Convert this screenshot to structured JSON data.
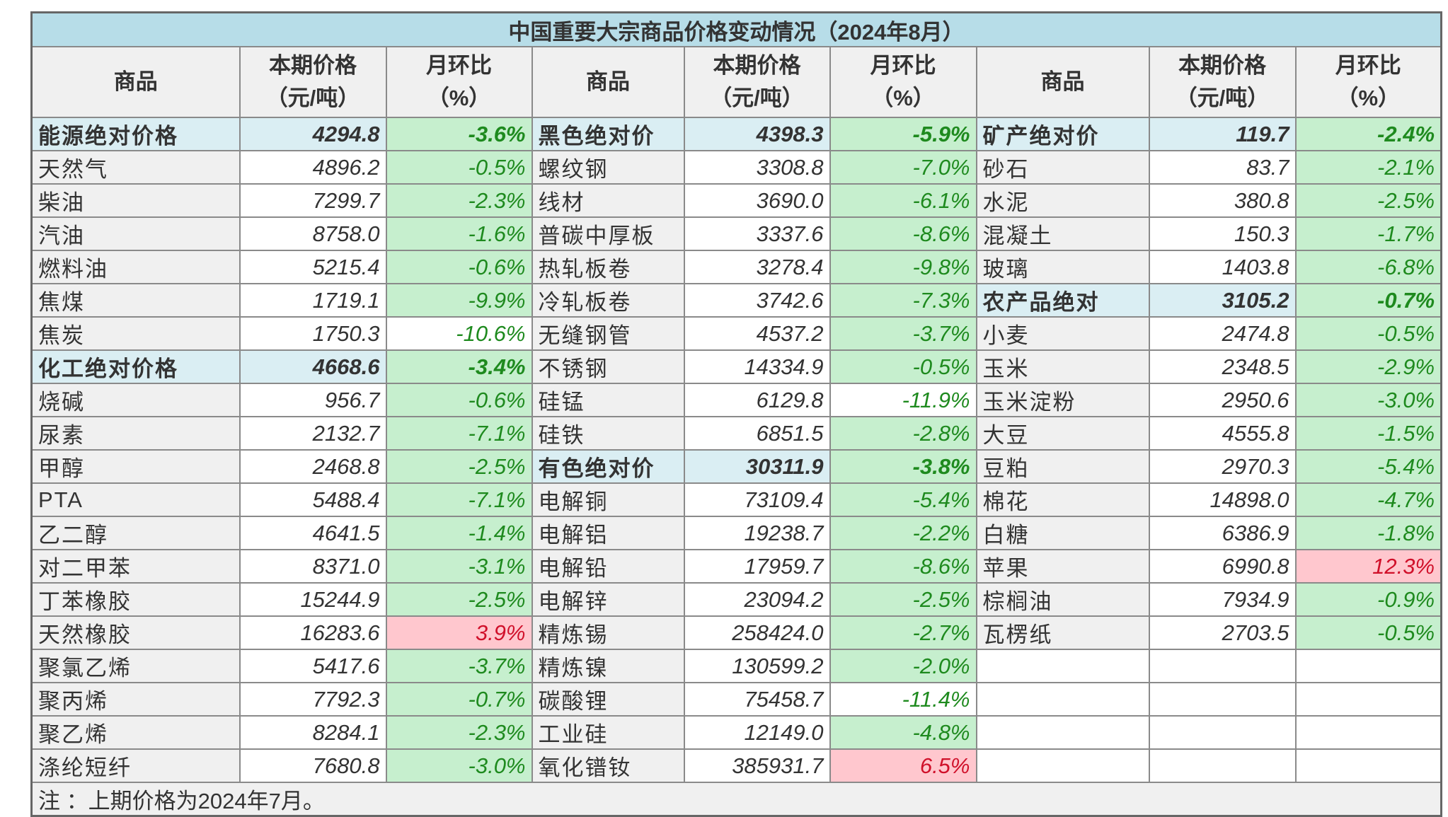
{
  "title": "中国重要大宗商品价格变动情况（2024年8月）",
  "headers": {
    "name": "商品",
    "price": [
      "本期价格",
      "（元/吨）"
    ],
    "change": [
      "月环比",
      "（%）"
    ]
  },
  "colors": {
    "header_bg": "#b7dde8",
    "category_bg": "#daeef3",
    "down_fill": "#c6efce",
    "down_text": "#1e8a1e",
    "up_fill": "#ffc7ce",
    "up_text": "#d0102a"
  },
  "groups": [
    [
      {
        "name": "能源绝对价格",
        "price": "4294.8",
        "change": "-3.6%",
        "category": true,
        "fill": "green"
      },
      {
        "name": "天然气",
        "price": "4896.2",
        "change": "-0.5%",
        "fill": "green"
      },
      {
        "name": "柴油",
        "price": "7299.7",
        "change": "-2.3%",
        "fill": "green"
      },
      {
        "name": "汽油",
        "price": "8758.0",
        "change": "-1.6%",
        "fill": "green"
      },
      {
        "name": "燃料油",
        "price": "5215.4",
        "change": "-0.6%",
        "fill": "green"
      },
      {
        "name": "焦煤",
        "price": "1719.1",
        "change": "-9.9%",
        "fill": "green"
      },
      {
        "name": "焦炭",
        "price": "1750.3",
        "change": "-10.6%",
        "fill": "none"
      },
      {
        "name": "化工绝对价格",
        "price": "4668.6",
        "change": "-3.4%",
        "category": true,
        "fill": "green"
      },
      {
        "name": "烧碱",
        "price": "956.7",
        "change": "-0.6%",
        "fill": "green"
      },
      {
        "name": "尿素",
        "price": "2132.7",
        "change": "-7.1%",
        "fill": "green"
      },
      {
        "name": "甲醇",
        "price": "2468.8",
        "change": "-2.5%",
        "fill": "green"
      },
      {
        "name": "PTA",
        "price": "5488.4",
        "change": "-7.1%",
        "fill": "green"
      },
      {
        "name": "乙二醇",
        "price": "4641.5",
        "change": "-1.4%",
        "fill": "green"
      },
      {
        "name": "对二甲苯",
        "price": "8371.0",
        "change": "-3.1%",
        "fill": "green"
      },
      {
        "name": "丁苯橡胶",
        "price": "15244.9",
        "change": "-2.5%",
        "fill": "green"
      },
      {
        "name": "天然橡胶",
        "price": "16283.6",
        "change": "3.9%",
        "fill": "red"
      },
      {
        "name": "聚氯乙烯",
        "price": "5417.6",
        "change": "-3.7%",
        "fill": "green"
      },
      {
        "name": "聚丙烯",
        "price": "7792.3",
        "change": "-0.7%",
        "fill": "green"
      },
      {
        "name": "聚乙烯",
        "price": "8284.1",
        "change": "-2.3%",
        "fill": "green"
      },
      {
        "name": "涤纶短纤",
        "price": "7680.8",
        "change": "-3.0%",
        "fill": "green"
      }
    ],
    [
      {
        "name": "黑色绝对价",
        "price": "4398.3",
        "change": "-5.9%",
        "category": true,
        "fill": "green"
      },
      {
        "name": "螺纹钢",
        "price": "3308.8",
        "change": "-7.0%",
        "fill": "green"
      },
      {
        "name": "线材",
        "price": "3690.0",
        "change": "-6.1%",
        "fill": "green"
      },
      {
        "name": "普碳中厚板",
        "price": "3337.6",
        "change": "-8.6%",
        "fill": "green"
      },
      {
        "name": "热轧板卷",
        "price": "3278.4",
        "change": "-9.8%",
        "fill": "green"
      },
      {
        "name": "冷轧板卷",
        "price": "3742.6",
        "change": "-7.3%",
        "fill": "green"
      },
      {
        "name": "无缝钢管",
        "price": "4537.2",
        "change": "-3.7%",
        "fill": "green"
      },
      {
        "name": "不锈钢",
        "price": "14334.9",
        "change": "-0.5%",
        "fill": "green"
      },
      {
        "name": "硅锰",
        "price": "6129.8",
        "change": "-11.9%",
        "fill": "none"
      },
      {
        "name": "硅铁",
        "price": "6851.5",
        "change": "-2.8%",
        "fill": "green"
      },
      {
        "name": "有色绝对价",
        "price": "30311.9",
        "change": "-3.8%",
        "category": true,
        "fill": "green"
      },
      {
        "name": "电解铜",
        "price": "73109.4",
        "change": "-5.4%",
        "fill": "green"
      },
      {
        "name": "电解铝",
        "price": "19238.7",
        "change": "-2.2%",
        "fill": "green"
      },
      {
        "name": "电解铅",
        "price": "17959.7",
        "change": "-8.6%",
        "fill": "green"
      },
      {
        "name": "电解锌",
        "price": "23094.2",
        "change": "-2.5%",
        "fill": "green"
      },
      {
        "name": "精炼锡",
        "price": "258424.0",
        "change": "-2.7%",
        "fill": "green"
      },
      {
        "name": "精炼镍",
        "price": "130599.2",
        "change": "-2.0%",
        "fill": "green"
      },
      {
        "name": "碳酸锂",
        "price": "75458.7",
        "change": "-11.4%",
        "fill": "none"
      },
      {
        "name": "工业硅",
        "price": "12149.0",
        "change": "-4.8%",
        "fill": "green"
      },
      {
        "name": "氧化镨钕",
        "price": "385931.7",
        "change": "6.5%",
        "fill": "red"
      }
    ],
    [
      {
        "name": "矿产绝对价",
        "price": "119.7",
        "change": "-2.4%",
        "category": true,
        "fill": "green"
      },
      {
        "name": "砂石",
        "price": "83.7",
        "change": "-2.1%",
        "fill": "green"
      },
      {
        "name": "水泥",
        "price": "380.8",
        "change": "-2.5%",
        "fill": "green"
      },
      {
        "name": "混凝土",
        "price": "150.3",
        "change": "-1.7%",
        "fill": "green"
      },
      {
        "name": "玻璃",
        "price": "1403.8",
        "change": "-6.8%",
        "fill": "green"
      },
      {
        "name": "农产品绝对",
        "price": "3105.2",
        "change": "-0.7%",
        "category": true,
        "fill": "green"
      },
      {
        "name": "小麦",
        "price": "2474.8",
        "change": "-0.5%",
        "fill": "green"
      },
      {
        "name": "玉米",
        "price": "2348.5",
        "change": "-2.9%",
        "fill": "green"
      },
      {
        "name": "玉米淀粉",
        "price": "2950.6",
        "change": "-3.0%",
        "fill": "green"
      },
      {
        "name": "大豆",
        "price": "4555.8",
        "change": "-1.5%",
        "fill": "green"
      },
      {
        "name": "豆粕",
        "price": "2970.3",
        "change": "-5.4%",
        "fill": "green"
      },
      {
        "name": "棉花",
        "price": "14898.0",
        "change": "-4.7%",
        "fill": "green"
      },
      {
        "name": "白糖",
        "price": "6386.9",
        "change": "-1.8%",
        "fill": "green"
      },
      {
        "name": "苹果",
        "price": "6990.8",
        "change": "12.3%",
        "fill": "red"
      },
      {
        "name": "棕榈油",
        "price": "7934.9",
        "change": "-0.9%",
        "fill": "green"
      },
      {
        "name": "瓦楞纸",
        "price": "2703.5",
        "change": "-0.5%",
        "fill": "green"
      }
    ]
  ],
  "note": "注 ：上期价格为2024年7月。"
}
